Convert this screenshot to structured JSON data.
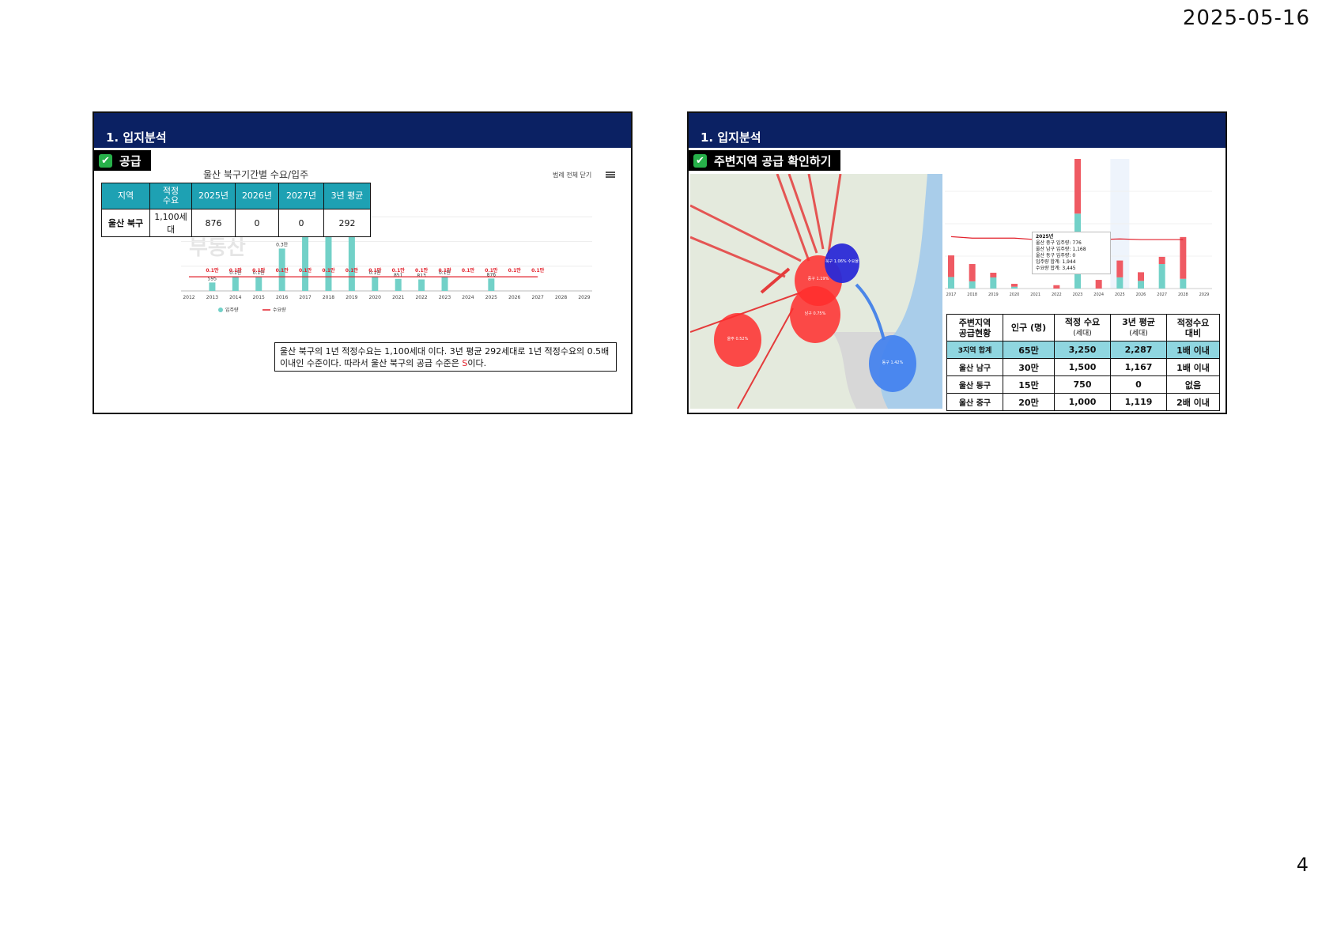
{
  "page": {
    "date": "2025-05-16",
    "number": "4"
  },
  "slide1": {
    "header": "1. 입지분석",
    "section": "공급",
    "chart_title": "울산 북구기간별 수요/입주",
    "legend_close": "범례 전체 닫기",
    "watermark": "부동산",
    "table": {
      "headers": [
        "지역",
        "적정\n수요",
        "2025년",
        "2026년",
        "2027년",
        "3년 평균"
      ],
      "row": [
        "울산 북구",
        "1,100세대",
        "876",
        "0",
        "0",
        "292"
      ]
    },
    "caption_part1": "울산 북구의 1년 적정수요는 1,100세대 이다. 3년 평균 292세대로 1년 적정수요의 0.5배 이내인 수준이다. 따라서 울산 북구의 공급 수준은 ",
    "caption_highlight": "S",
    "caption_part2": "이다."
  },
  "slide2": {
    "header": "1. 입지분석",
    "section": "주변지역 공급 확인하기",
    "tooltip": [
      "2025년",
      "울산 중구 입주량: 776",
      "울산 남구 입주량: 1,168",
      "울산 동구 입주량: 0",
      "입주량 합계: 1,944",
      "수요량 합계: 3,445"
    ],
    "table": {
      "headers": [
        {
          "main": "주변지역\n공급현황",
          "sub": ""
        },
        {
          "main": "인구 (명)",
          "sub": ""
        },
        {
          "main": "적정 수요",
          "sub": "(세대)"
        },
        {
          "main": "3년 평균",
          "sub": "(세대)"
        },
        {
          "main": "적정수요\n대비",
          "sub": ""
        }
      ],
      "rows": [
        [
          "3지역 합계",
          "65만",
          "3,250",
          "2,287",
          "1배 이내"
        ],
        [
          "울산 남구",
          "30만",
          "1,500",
          "1,167",
          "1배 이내"
        ],
        [
          "울산 동구",
          "15만",
          "750",
          "0",
          "없음"
        ],
        [
          "울산 중구",
          "20만",
          "1,000",
          "1,119",
          "2배 이내"
        ]
      ]
    },
    "map_labels": {
      "north": "북구\n1.06%\n수요율",
      "jung": "중구\n1.19%",
      "nam": "남구\n0.75%",
      "ulju": "울주\n0.52%",
      "dong": "동구\n1.42%"
    }
  },
  "chart_data": [
    {
      "type": "bar",
      "title": "울산 북구기간별 수요/입주",
      "categories": [
        "2012",
        "2013",
        "2014",
        "2015",
        "2016",
        "2017",
        "2018",
        "2019",
        "2020",
        "2021",
        "2022",
        "2023",
        "2024",
        "2025",
        "2026",
        "2027",
        "2028",
        "2029"
      ],
      "series": [
        {
          "name": "입주량",
          "color": "#72d1c8",
          "values": [
            0,
            595,
            1000,
            1000,
            3000,
            4000,
            4000,
            6000,
            1000,
            851,
            813,
            1000,
            0,
            876,
            0,
            0,
            0,
            0
          ]
        },
        {
          "name": "수요량",
          "color": "#e2202b",
          "type": "line",
          "values": [
            1000,
            1000,
            1000,
            1000,
            1000,
            1000,
            1000,
            1000,
            1000,
            1000,
            1000,
            1000,
            1000,
            1000,
            1000,
            1000,
            null,
            null
          ]
        }
      ],
      "bar_labels": [
        "",
        "595",
        "0.1만",
        "0.1만",
        "0.3만",
        "0.4만",
        "0.4만",
        "0.6만",
        "0.1만",
        "851",
        "813",
        "0.1만",
        "",
        "876",
        "",
        "",
        "",
        ""
      ],
      "line_labels": [
        "",
        "0.1만",
        "0.1만",
        "0.1만",
        "0.1만",
        "0.1만",
        "0.1만",
        "0.1만",
        "0.1만",
        "0.1만",
        "0.1만",
        "0.1만",
        "0.1만",
        "0.1만",
        "0.1만",
        "0.1만",
        "",
        ""
      ],
      "legend": "bottom-left",
      "ylim": [
        0,
        7000
      ]
    },
    {
      "type": "bar",
      "categories": [
        "2017",
        "2018",
        "2019",
        "2020",
        "2021",
        "2022",
        "2023",
        "2024",
        "2025",
        "2026",
        "2027",
        "2028",
        "2029"
      ],
      "series": [
        {
          "name": "울산 중구",
          "color": "#72d1c8",
          "values": [
            800,
            500,
            771,
            127,
            0,
            0,
            5200,
            0,
            776,
            531,
            1700,
            675,
            0
          ]
        },
        {
          "name": "울산 남구",
          "color": "#ef5a63",
          "values": [
            1500,
            1200,
            326,
            200,
            0,
            233,
            3800,
            600,
            1168,
            600,
            500,
            2900,
            0
          ]
        },
        {
          "name": "울산 동구",
          "color": "#5a8de8",
          "values": [
            0,
            0,
            0,
            0,
            0,
            0,
            0,
            0,
            0,
            0,
            0,
            0,
            0
          ]
        },
        {
          "name": "수요량",
          "color": "#e2202b",
          "type": "line",
          "values": [
            3600,
            3500,
            3500,
            3500,
            3400,
            3400,
            3400,
            3400,
            3445,
            3400,
            3400,
            3400,
            null
          ]
        }
      ],
      "ylim": [
        0,
        9000
      ]
    }
  ]
}
